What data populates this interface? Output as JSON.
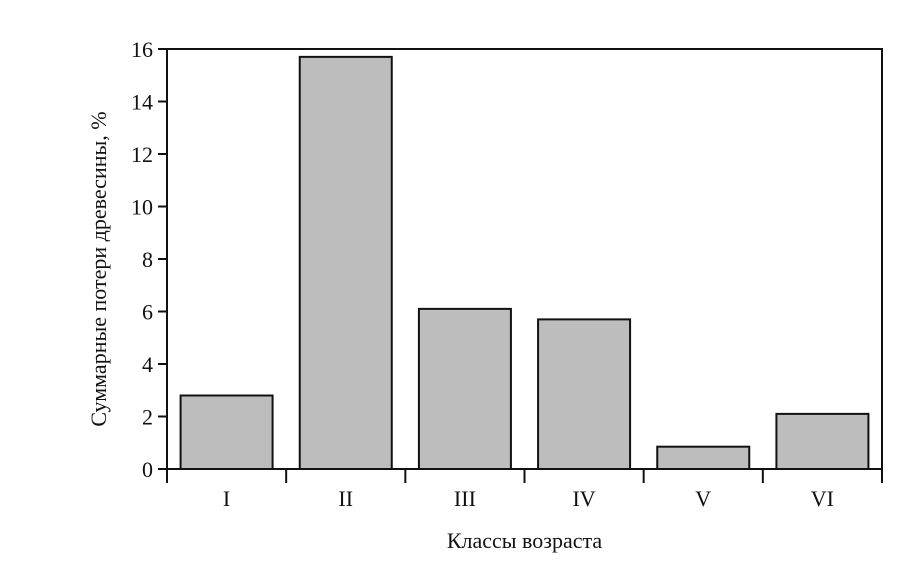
{
  "chart_data": {
    "type": "bar",
    "title": "",
    "xlabel": "Классы возраста",
    "ylabel": "Суммарные потери древесины, %",
    "categories": [
      "I",
      "II",
      "III",
      "IV",
      "V",
      "VI"
    ],
    "values": [
      2.8,
      15.7,
      6.1,
      5.7,
      0.85,
      2.1
    ],
    "ylim": [
      0,
      16
    ],
    "yticks": [
      0,
      2,
      4,
      6,
      8,
      10,
      12,
      14,
      16
    ],
    "grid": false,
    "legend": "none",
    "colors": {
      "bar_fill": "#bdbdbd",
      "bar_stroke": "#111111",
      "axis": "#111111"
    }
  }
}
